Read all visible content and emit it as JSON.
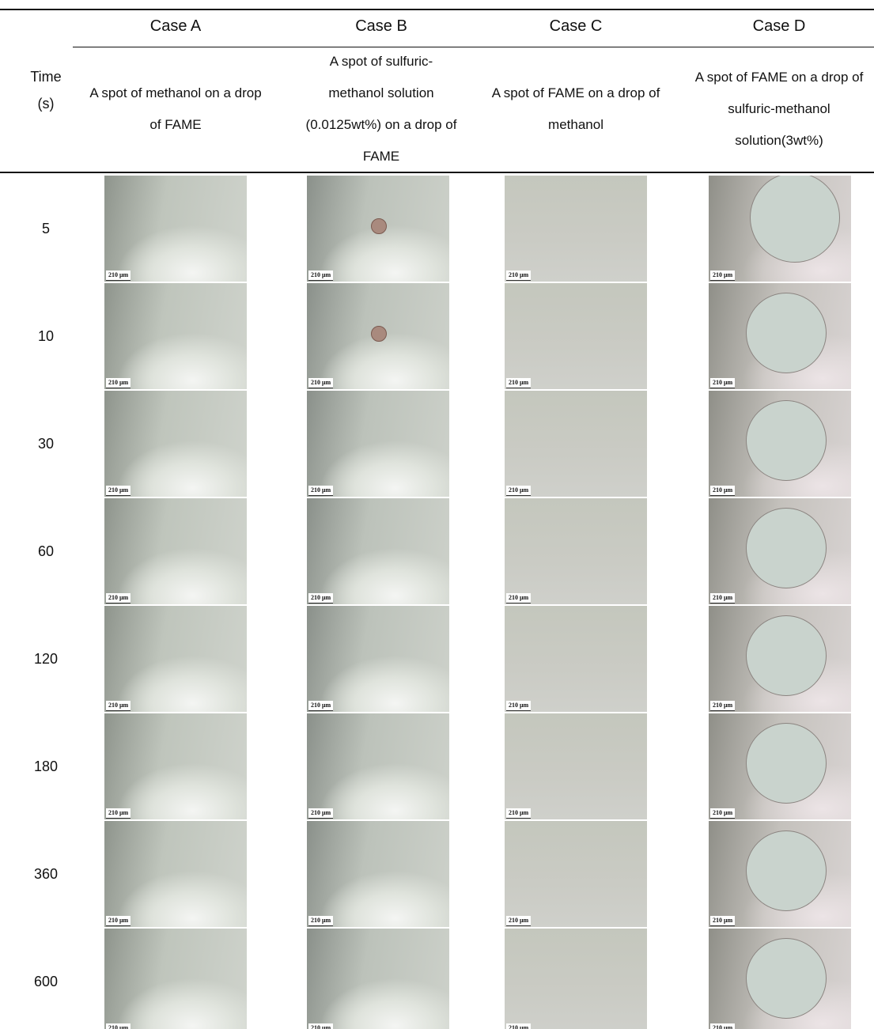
{
  "table": {
    "time_header": "Time (s)",
    "scale_label": "210 μm",
    "columns": [
      {
        "title": "Case A",
        "description": "A spot of methanol on a drop of FAME"
      },
      {
        "title": "Case B",
        "description": "A spot of sulfuric-methanol solution (0.0125wt%) on a drop of FAME"
      },
      {
        "title": "Case C",
        "description": "A spot of FAME on a drop of  methanol"
      },
      {
        "title": "Case D",
        "description": "A spot of FAME on a drop of  sulfuric-methanol solution(3wt%)"
      }
    ],
    "rows": [
      5,
      10,
      30,
      60,
      120,
      180,
      360,
      600
    ]
  }
}
